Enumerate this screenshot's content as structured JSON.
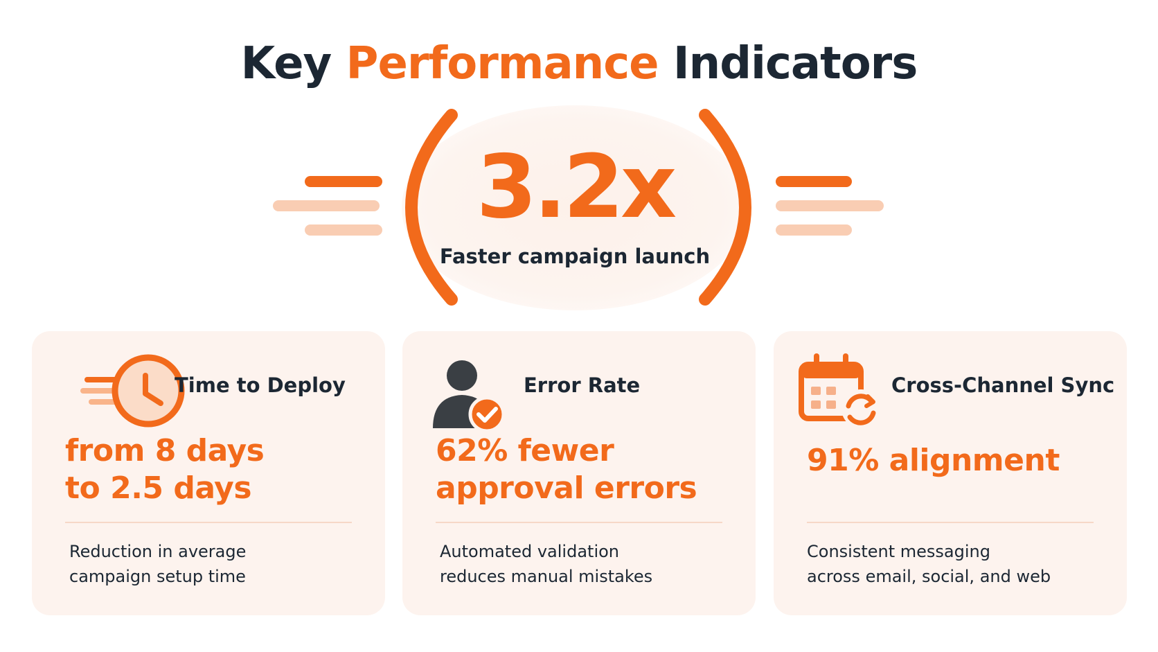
{
  "title": {
    "part1": "Key",
    "part2": "Performance",
    "part3": "Indicators"
  },
  "hero": {
    "value": "3.2x",
    "label": "Faster campaign launch"
  },
  "cards": [
    {
      "icon": "clock-icon",
      "title": "Time to Deploy",
      "metric_lines": [
        "from 8 days",
        "to 2.5 days"
      ],
      "description_lines": [
        "Reduction in average",
        "campaign setup time"
      ]
    },
    {
      "icon": "user-check-icon",
      "title": "Error Rate",
      "metric_lines": [
        "62% fewer",
        "approval errors"
      ],
      "description_lines": [
        "Automated validation",
        "reduces manual mistakes"
      ]
    },
    {
      "icon": "calendar-sync-icon",
      "title": "Cross-Channel Sync",
      "metric_lines": [
        "91% alignment"
      ],
      "description_lines": [
        "Consistent messaging",
        "across email, social, and web"
      ]
    }
  ],
  "colors": {
    "accent": "#f26a1b",
    "accent_light": "#f8c4a4",
    "text_dark": "#1c2733",
    "card_bg": "#fdf3ee",
    "icon_dark": "#3a3f44"
  }
}
